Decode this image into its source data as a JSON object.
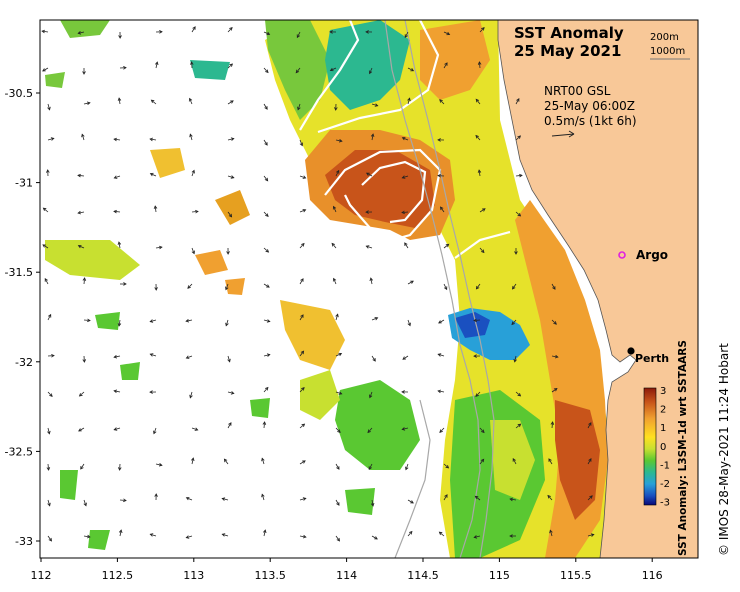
{
  "title_line1": "SST Anomaly",
  "title_line2": "25 May 2021",
  "depth_labels": [
    "200m",
    "1000m"
  ],
  "current_source": "NRT00 GSL",
  "current_time": "25-May 06:00Z",
  "scale_vector": "0.5m/s (1kt 6h)",
  "markers": {
    "argo": "Argo",
    "perth": "Perth"
  },
  "colorbar": {
    "title": "SST Anomaly: L3SM-1d wrt SSTAARS",
    "ticks": [
      "3",
      "2",
      "1",
      "0",
      "-1",
      "-2",
      "-3"
    ],
    "colors": [
      "#8c1a0a",
      "#c8541a",
      "#f0a030",
      "#ffe020",
      "#c8e030",
      "#5ac832",
      "#2cb890",
      "#28a0d8",
      "#1a50c0",
      "#080878"
    ]
  },
  "credit": "© IMOS 28-May-2021 11:24 Hobart",
  "axes": {
    "x_ticks": [
      "112",
      "112.5",
      "113",
      "113.5",
      "114",
      "114.5",
      "115",
      "115.5",
      "116"
    ],
    "y_ticks": [
      "-30.5",
      "-31",
      "-31.5",
      "-32",
      "-32.5",
      "-33"
    ]
  },
  "colors": {
    "land": "#f8c898",
    "ocean_blank": "#ffffff",
    "contour": "#ffffff",
    "bathy": "#a8a8a8"
  }
}
